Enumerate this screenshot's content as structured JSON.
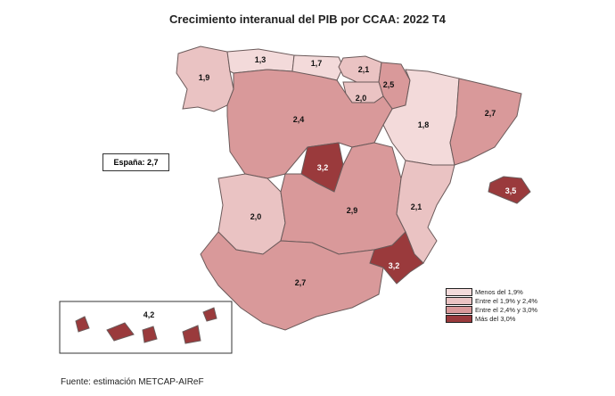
{
  "title": "Crecimiento interanual del PIB por CCAA: 2022 T4",
  "spain_label": "España: 2,7",
  "source": "Fuente: estimación METCAP-AIReF",
  "colors": {
    "low": "#f3dada",
    "mid_low": "#eac3c3",
    "mid_high": "#d9999a",
    "high": "#9a3a3c"
  },
  "legend": [
    {
      "label": "Menos del 1,9%",
      "class": "low"
    },
    {
      "label": "Entre el 1,9% y 2,4%",
      "class": "mid_low"
    },
    {
      "label": "Entre el 2,4% y 3,0%",
      "class": "mid_high"
    },
    {
      "label": "Más del 3,0%",
      "class": "high"
    }
  ],
  "regions": [
    {
      "name": "Galicia",
      "value": "1,9",
      "class": "mid_low"
    },
    {
      "name": "Asturias",
      "value": "1,3",
      "class": "low"
    },
    {
      "name": "Cantabria",
      "value": "1,7",
      "class": "low"
    },
    {
      "name": "País Vasco",
      "value": "2,1",
      "class": "mid_low"
    },
    {
      "name": "Navarra",
      "value": "2,5",
      "class": "mid_high"
    },
    {
      "name": "La Rioja",
      "value": "2,0",
      "class": "mid_low"
    },
    {
      "name": "Aragón",
      "value": "1,8",
      "class": "low"
    },
    {
      "name": "Cataluña",
      "value": "2,7",
      "class": "mid_high"
    },
    {
      "name": "Castilla y León",
      "value": "2,4",
      "class": "mid_high"
    },
    {
      "name": "Madrid",
      "value": "3,2",
      "class": "high"
    },
    {
      "name": "Extremadura",
      "value": "2,0",
      "class": "mid_low"
    },
    {
      "name": "Castilla-La Mancha",
      "value": "2,9",
      "class": "mid_high"
    },
    {
      "name": "Comunitat Valenciana",
      "value": "2,1",
      "class": "mid_low"
    },
    {
      "name": "Murcia",
      "value": "3,2",
      "class": "high"
    },
    {
      "name": "Andalucía",
      "value": "2,7",
      "class": "mid_high"
    },
    {
      "name": "Baleares",
      "value": "3,5",
      "class": "high"
    },
    {
      "name": "Canarias",
      "value": "4,2",
      "class": "high"
    }
  ]
}
